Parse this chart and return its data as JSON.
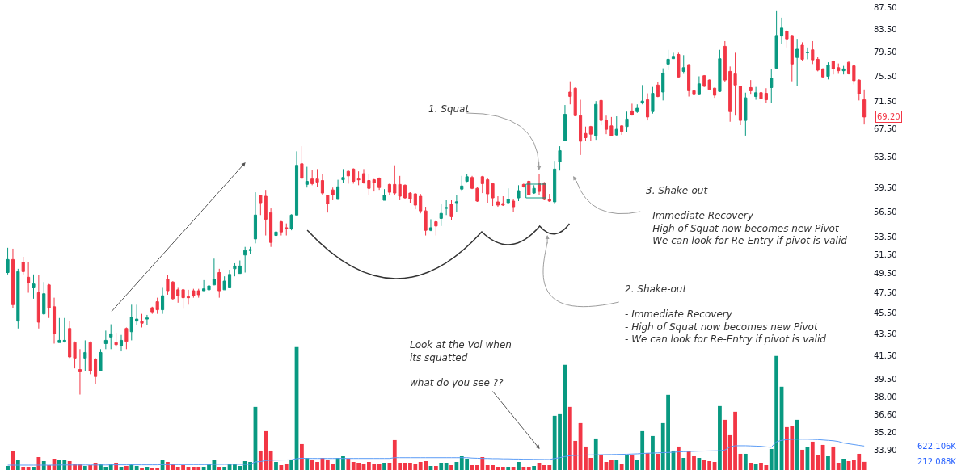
{
  "chart_data": {
    "type": "candlestick",
    "categories": [
      null,
      null,
      null,
      null,
      null,
      null,
      null,
      null,
      null,
      null,
      null,
      null,
      null,
      null,
      null,
      null,
      null,
      null,
      null,
      null,
      null,
      null,
      null,
      null,
      null,
      null,
      null,
      null,
      null,
      null,
      null,
      null,
      null,
      null,
      null,
      null,
      null,
      null,
      null,
      null,
      null,
      null,
      null,
      null,
      null,
      null,
      null,
      null,
      null,
      null,
      null,
      null,
      null,
      null,
      null,
      null,
      null,
      null,
      null,
      null,
      null,
      null,
      null,
      null,
      null,
      null,
      null,
      null,
      null,
      null,
      null,
      null,
      null,
      null,
      null,
      null,
      null,
      null,
      null,
      null,
      null,
      null,
      null,
      null,
      null,
      null,
      null,
      null,
      null,
      null,
      null,
      null,
      null,
      null,
      null,
      null,
      null,
      null,
      null,
      null,
      null,
      null,
      null,
      null,
      null,
      null,
      null,
      null,
      null,
      null,
      null,
      null,
      null,
      null,
      null,
      null,
      null,
      null,
      null,
      null,
      null,
      null,
      null,
      null,
      null,
      null,
      null,
      null,
      null,
      null,
      null,
      null,
      null,
      null,
      null,
      null,
      null,
      null,
      null,
      null,
      null,
      null,
      null,
      null,
      null,
      null,
      null,
      null,
      null,
      null,
      null,
      null,
      null,
      null,
      null,
      null,
      null,
      null,
      null,
      null,
      null,
      null,
      null,
      null,
      null,
      null,
      null
    ],
    "ohlc": [
      [
        49.6,
        52.3,
        49.4,
        51.0
      ],
      [
        51.0,
        52.2,
        46.0,
        46.3
      ],
      [
        44.7,
        50.0,
        44.0,
        49.7
      ],
      [
        50.7,
        51.3,
        49.4,
        49.7
      ],
      [
        49.1,
        50.7,
        47.5,
        48.5
      ],
      [
        48.0,
        49.4,
        46.9,
        48.4
      ],
      [
        47.5,
        49.3,
        44.0,
        44.6
      ],
      [
        45.4,
        48.6,
        45.3,
        47.4
      ],
      [
        48.3,
        48.4,
        45.0,
        46.0
      ],
      [
        46.1,
        47.0,
        42.6,
        43.5
      ],
      [
        42.7,
        45.0,
        42.7,
        42.9
      ],
      [
        42.8,
        45.0,
        42.7,
        42.9
      ],
      [
        44.0,
        44.7,
        41.3,
        41.4
      ],
      [
        42.7,
        42.8,
        40.4,
        41.3
      ],
      [
        40.3,
        42.1,
        38.2,
        40.1
      ],
      [
        41.3,
        42.9,
        40.2,
        41.8
      ],
      [
        42.7,
        42.8,
        39.9,
        40.2
      ],
      [
        41.2,
        41.3,
        39.1,
        39.7
      ],
      [
        40.2,
        42.1,
        40.2,
        41.8
      ],
      [
        42.6,
        43.8,
        42.1,
        42.9
      ],
      [
        43.2,
        44.4,
        42.1,
        43.5
      ],
      [
        42.7,
        43.6,
        42.3,
        42.5
      ],
      [
        42.4,
        43.4,
        41.9,
        42.9
      ],
      [
        44.0,
        44.1,
        42.1,
        42.8
      ],
      [
        43.7,
        46.3,
        42.9,
        45.1
      ],
      [
        44.7,
        46.3,
        44.3,
        44.9
      ],
      [
        44.7,
        45.4,
        44.1,
        44.5
      ],
      [
        44.9,
        45.3,
        44.3,
        45.0
      ],
      [
        46.0,
        46.1,
        45.4,
        45.6
      ],
      [
        46.6,
        47.0,
        45.4,
        45.8
      ],
      [
        45.8,
        48.0,
        45.4,
        47.2
      ],
      [
        48.9,
        49.3,
        47.3,
        47.7
      ],
      [
        48.6,
        48.7,
        46.8,
        46.9
      ],
      [
        47.8,
        48.0,
        46.5,
        47.2
      ],
      [
        47.8,
        47.9,
        45.9,
        47.0
      ],
      [
        47.1,
        47.8,
        46.3,
        47.0
      ],
      [
        47.7,
        47.9,
        47.0,
        47.2
      ],
      [
        47.7,
        47.9,
        47.0,
        47.3
      ],
      [
        47.7,
        48.8,
        47.7,
        47.9
      ],
      [
        47.8,
        48.9,
        46.9,
        48.2
      ],
      [
        48.3,
        51.1,
        48.3,
        48.9
      ],
      [
        49.6,
        50.0,
        47.0,
        47.7
      ],
      [
        47.8,
        49.2,
        47.8,
        48.7
      ],
      [
        48.0,
        49.9,
        48.0,
        49.4
      ],
      [
        50.0,
        50.6,
        49.2,
        50.3
      ],
      [
        49.5,
        50.9,
        49.5,
        50.3
      ],
      [
        51.5,
        52.4,
        49.6,
        52.0
      ],
      [
        52.0,
        52.4,
        51.6,
        52.1
      ],
      [
        53.3,
        58.9,
        52.8,
        56.1
      ],
      [
        58.5,
        58.6,
        56.1,
        57.6
      ],
      [
        58.4,
        59.2,
        53.7,
        55.6
      ],
      [
        56.4,
        56.9,
        52.4,
        52.9
      ],
      [
        53.7,
        55.3,
        52.9,
        54.1
      ],
      [
        55.3,
        55.4,
        53.7,
        54.1
      ],
      [
        54.6,
        55.1,
        53.7,
        54.5
      ],
      [
        54.5,
        56.2,
        54.3,
        56.1
      ],
      [
        56.1,
        64.3,
        56.1,
        62.4
      ],
      [
        62.6,
        65.0,
        60.6,
        60.7
      ],
      [
        59.9,
        62.2,
        59.5,
        60.3
      ],
      [
        60.6,
        61.8,
        59.8,
        60.0
      ],
      [
        60.6,
        61.9,
        59.6,
        60.2
      ],
      [
        60.4,
        61.2,
        58.6,
        58.8
      ],
      [
        58.5,
        58.6,
        56.4,
        57.5
      ],
      [
        59.2,
        59.5,
        57.9,
        58.6
      ],
      [
        58.0,
        60.5,
        58.0,
        59.6
      ],
      [
        60.5,
        61.9,
        60.1,
        60.8
      ],
      [
        61.6,
        61.8,
        60.0,
        61.0
      ],
      [
        61.9,
        62.0,
        60.0,
        60.3
      ],
      [
        60.6,
        61.6,
        59.8,
        60.5
      ],
      [
        61.3,
        61.9,
        60.0,
        60.1
      ],
      [
        60.4,
        61.2,
        58.6,
        59.4
      ],
      [
        60.5,
        60.6,
        59.0,
        60.1
      ],
      [
        60.7,
        60.8,
        59.2,
        59.5
      ],
      [
        57.9,
        59.3,
        57.9,
        58.5
      ],
      [
        59.9,
        60.0,
        58.6,
        58.9
      ],
      [
        59.9,
        62.4,
        58.5,
        58.8
      ],
      [
        59.9,
        61.0,
        57.9,
        58.4
      ],
      [
        59.8,
        59.9,
        58.1,
        58.2
      ],
      [
        58.8,
        58.9,
        57.6,
        58.1
      ],
      [
        58.7,
        58.8,
        56.8,
        57.3
      ],
      [
        58.4,
        58.7,
        56.3,
        56.6
      ],
      [
        56.6,
        57.1,
        53.7,
        54.3
      ],
      [
        54.3,
        55.6,
        54.2,
        54.6
      ],
      [
        55.3,
        55.5,
        53.7,
        54.8
      ],
      [
        55.7,
        57.4,
        54.8,
        56.3
      ],
      [
        56.9,
        57.9,
        56.1,
        57.0
      ],
      [
        57.4,
        57.9,
        55.5,
        55.9
      ],
      [
        57.6,
        58.6,
        56.5,
        57.7
      ],
      [
        59.3,
        61.0,
        59.0,
        59.7
      ],
      [
        60.3,
        61.2,
        60.2,
        60.9
      ],
      [
        60.8,
        61.0,
        59.3,
        59.4
      ],
      [
        59.4,
        59.6,
        57.7,
        57.8
      ],
      [
        60.9,
        61.0,
        58.8,
        60.0
      ],
      [
        60.5,
        60.7,
        57.6,
        58.7
      ],
      [
        60.0,
        60.1,
        57.2,
        58.2
      ],
      [
        57.7,
        58.4,
        57.1,
        57.3
      ],
      [
        57.5,
        58.4,
        57.2,
        57.3
      ],
      [
        57.6,
        59.4,
        57.5,
        58.0
      ],
      [
        57.8,
        58.0,
        56.5,
        57.1
      ],
      [
        58.2,
        59.8,
        57.8,
        59.1
      ],
      [
        59.9,
        60.0,
        59.5,
        59.6
      ],
      [
        60.3,
        60.4,
        58.5,
        58.6
      ],
      [
        58.8,
        59.8,
        58.7,
        59.4
      ],
      [
        60.0,
        61.2,
        58.6,
        59.0
      ],
      [
        60.1,
        60.2,
        57.9,
        58.0
      ],
      [
        58.0,
        58.7,
        57.7,
        57.8
      ],
      [
        57.7,
        63.0,
        57.4,
        61.9
      ],
      [
        62.9,
        65.0,
        61.7,
        64.4
      ],
      [
        65.8,
        71.0,
        65.8,
        69.6
      ],
      [
        73.0,
        74.7,
        71.1,
        72.3
      ],
      [
        73.6,
        73.7,
        69.3,
        69.4
      ],
      [
        69.4,
        71.8,
        63.8,
        65.7
      ],
      [
        66.8,
        67.8,
        65.7,
        66.2
      ],
      [
        67.8,
        67.9,
        65.7,
        66.7
      ],
      [
        66.5,
        71.6,
        65.9,
        71.1
      ],
      [
        71.7,
        71.8,
        68.0,
        68.7
      ],
      [
        68.7,
        69.4,
        66.7,
        67.4
      ],
      [
        67.9,
        69.2,
        66.4,
        66.5
      ],
      [
        66.6,
        69.3,
        66.5,
        67.4
      ],
      [
        67.9,
        68.0,
        66.6,
        67.1
      ],
      [
        67.8,
        70.0,
        67.0,
        68.9
      ],
      [
        70.1,
        71.2,
        69.4,
        69.5
      ],
      [
        70.0,
        71.1,
        69.8,
        70.5
      ],
      [
        71.3,
        74.1,
        71.1,
        71.6
      ],
      [
        71.8,
        72.8,
        68.7,
        69.2
      ],
      [
        70.0,
        73.8,
        69.7,
        72.8
      ],
      [
        74.1,
        74.6,
        72.2,
        72.3
      ],
      [
        73.0,
        76.8,
        71.7,
        76.0
      ],
      [
        77.5,
        79.9,
        76.5,
        78.3
      ],
      [
        78.4,
        79.4,
        78.4,
        78.8
      ],
      [
        79.1,
        79.4,
        75.3,
        75.4
      ],
      [
        76.3,
        79.0,
        75.9,
        76.9
      ],
      [
        77.4,
        77.5,
        72.3,
        73.2
      ],
      [
        73.2,
        74.1,
        72.3,
        72.6
      ],
      [
        72.6,
        75.5,
        72.5,
        74.3
      ],
      [
        75.6,
        75.7,
        73.8,
        73.9
      ],
      [
        74.9,
        75.0,
        73.3,
        73.4
      ],
      [
        73.6,
        73.7,
        72.1,
        72.5
      ],
      [
        73.1,
        79.9,
        73.0,
        78.4
      ],
      [
        80.5,
        81.4,
        74.6,
        74.9
      ],
      [
        76.3,
        77.1,
        68.5,
        70.0
      ],
      [
        75.9,
        79.4,
        69.4,
        74.1
      ],
      [
        73.9,
        74.0,
        68.0,
        68.7
      ],
      [
        68.7,
        72.9,
        66.5,
        72.1
      ],
      [
        73.7,
        74.9,
        72.6,
        73.2
      ],
      [
        72.3,
        73.8,
        71.8,
        72.9
      ],
      [
        72.9,
        73.0,
        70.9,
        72.0
      ],
      [
        72.8,
        73.6,
        71.3,
        71.8
      ],
      [
        73.7,
        76.7,
        71.3,
        75.2
      ],
      [
        76.8,
        86.8,
        76.7,
        82.4
      ],
      [
        82.3,
        85.6,
        80.9,
        83.7
      ],
      [
        83.1,
        83.4,
        80.3,
        81.8
      ],
      [
        82.4,
        82.5,
        74.7,
        77.5
      ],
      [
        78.6,
        81.8,
        74.0,
        80.0
      ],
      [
        80.7,
        81.2,
        78.1,
        78.3
      ],
      [
        79.4,
        80.3,
        78.3,
        79.5
      ],
      [
        79.9,
        81.4,
        77.5,
        78.2
      ],
      [
        78.3,
        78.7,
        76.3,
        76.5
      ],
      [
        76.7,
        76.8,
        75.2,
        75.4
      ],
      [
        75.5,
        77.8,
        75.0,
        77.3
      ],
      [
        78.0,
        78.1,
        75.8,
        76.7
      ],
      [
        76.9,
        77.6,
        75.9,
        76.4
      ],
      [
        76.4,
        77.2,
        75.8,
        76.7
      ],
      [
        77.8,
        77.9,
        75.8,
        75.9
      ],
      [
        77.2,
        77.3,
        74.2,
        74.8
      ],
      [
        74.9,
        75.0,
        71.7,
        72.7
      ],
      [
        71.8,
        73.4,
        68.1,
        69.2
      ]
    ],
    "colors": [
      "#089981",
      "#f23645",
      "#089981",
      "#f23645",
      "#f23645",
      "#089981",
      "#f23645",
      "#089981",
      "#f23645",
      "#f23645",
      "#089981",
      "#089981",
      "#f23645",
      "#f23645",
      "#f23645",
      "#089981",
      "#f23645",
      "#f23645",
      "#089981",
      "#089981",
      "#089981",
      "#f23645",
      "#089981",
      "#f23645",
      "#089981",
      "#089981",
      "#f23645",
      "#089981",
      "#f23645",
      "#f23645",
      "#089981",
      "#f23645",
      "#f23645",
      "#f23645",
      "#f23645",
      "#f23645",
      "#f23645",
      "#f23645",
      "#089981",
      "#089981",
      "#089981",
      "#f23645",
      "#089981",
      "#089981",
      "#089981",
      "#089981",
      "#089981",
      "#089981",
      "#089981",
      "#f23645",
      "#f23645",
      "#f23645",
      "#089981",
      "#f23645",
      "#f23645",
      "#089981",
      "#089981",
      "#f23645",
      "#089981",
      "#f23645",
      "#f23645",
      "#f23645",
      "#f23645",
      "#f23645",
      "#089981",
      "#089981",
      "#f23645",
      "#f23645",
      "#f23645",
      "#f23645",
      "#f23645",
      "#f23645",
      "#f23645",
      "#089981",
      "#f23645",
      "#f23645",
      "#f23645",
      "#f23645",
      "#f23645",
      "#f23645",
      "#f23645",
      "#f23645",
      "#089981",
      "#f23645",
      "#089981",
      "#089981",
      "#f23645",
      "#089981",
      "#089981",
      "#089981",
      "#f23645",
      "#f23645",
      "#f23645",
      "#f23645",
      "#f23645",
      "#f23645",
      "#f23645",
      "#089981",
      "#f23645",
      "#089981",
      "#f23645",
      "#f23645",
      "#089981",
      "#f23645",
      "#f23645",
      "#f23645",
      "#089981",
      "#089981",
      "#089981",
      "#f23645",
      "#f23645",
      "#f23645",
      "#f23645",
      "#f23645",
      "#089981",
      "#f23645",
      "#f23645",
      "#f23645",
      "#089981",
      "#f23645",
      "#089981",
      "#f23645",
      "#089981",
      "#089981",
      "#f23645",
      "#089981",
      "#f23645",
      "#089981",
      "#089981",
      "#089981",
      "#f23645",
      "#089981",
      "#f23645",
      "#f23645",
      "#089981",
      "#f23645",
      "#f23645",
      "#f23645",
      "#089981",
      "#f23645",
      "#f23645",
      "#f23645",
      "#f23645",
      "#089981",
      "#f23645",
      "#089981",
      "#f23645",
      "#f23645",
      "#089981",
      "#089981",
      "#089981",
      "#f23645",
      "#f23645",
      "#089981",
      "#f23645",
      "#089981",
      "#f23645",
      "#f23645",
      "#f23645",
      "#089981",
      "#f23645",
      "#f23645",
      "#089981",
      "#f23645",
      "#f23645",
      "#f23645",
      "#f23645"
    ],
    "series": [
      {
        "type": "bar",
        "axis": "y2",
        "colors": [
          "#089981",
          "#f23645",
          "#089981",
          "#f23645",
          "#f23645",
          "#089981",
          "#f23645",
          "#089981",
          "#f23645",
          "#f23645",
          "#089981",
          "#089981",
          "#f23645",
          "#f23645",
          "#f23645",
          "#089981",
          "#f23645",
          "#f23645",
          "#089981",
          "#089981",
          "#089981",
          "#f23645",
          "#089981",
          "#f23645",
          "#089981",
          "#089981",
          "#f23645",
          "#089981",
          "#f23645",
          "#f23645",
          "#089981",
          "#f23645",
          "#f23645",
          "#f23645",
          "#f23645",
          "#f23645",
          "#f23645",
          "#f23645",
          "#089981",
          "#089981",
          "#089981",
          "#f23645",
          "#089981",
          "#089981",
          "#089981",
          "#089981",
          "#089981",
          "#089981",
          "#089981",
          "#f23645",
          "#f23645",
          "#f23645",
          "#089981",
          "#f23645",
          "#f23645",
          "#089981",
          "#089981",
          "#f23645",
          "#089981",
          "#f23645",
          "#f23645",
          "#f23645",
          "#f23645",
          "#f23645",
          "#089981",
          "#089981",
          "#f23645",
          "#f23645",
          "#f23645",
          "#f23645",
          "#f23645",
          "#f23645",
          "#f23645",
          "#089981",
          "#f23645",
          "#f23645",
          "#f23645",
          "#f23645",
          "#f23645",
          "#f23645",
          "#f23645",
          "#f23645",
          "#089981",
          "#f23645",
          "#089981",
          "#089981",
          "#f23645",
          "#089981",
          "#089981",
          "#089981",
          "#f23645",
          "#f23645",
          "#f23645",
          "#f23645",
          "#f23645",
          "#f23645",
          "#f23645",
          "#089981",
          "#f23645",
          "#089981",
          "#f23645",
          "#f23645",
          "#089981",
          "#f23645",
          "#f23645",
          "#f23645",
          "#089981",
          "#089981",
          "#089981",
          "#f23645",
          "#f23645",
          "#f23645",
          "#f23645",
          "#f23645",
          "#089981",
          "#f23645",
          "#f23645",
          "#f23645",
          "#089981",
          "#f23645",
          "#089981",
          "#f23645",
          "#089981",
          "#089981",
          "#f23645",
          "#089981",
          "#f23645",
          "#089981",
          "#089981",
          "#089981",
          "#f23645",
          "#089981",
          "#f23645",
          "#f23645",
          "#089981",
          "#f23645",
          "#f23645",
          "#f23645",
          "#089981",
          "#f23645",
          "#f23645",
          "#f23645",
          "#f23645",
          "#089981",
          "#f23645",
          "#089981",
          "#f23645",
          "#f23645",
          "#089981",
          "#089981",
          "#089981",
          "#f23645",
          "#f23645",
          "#089981",
          "#f23645",
          "#089981",
          "#f23645",
          "#f23645",
          "#f23645",
          "#089981",
          "#f23645",
          "#f23645",
          "#089981",
          "#f23645",
          "#f23645",
          "#f23645",
          "#f23645"
        ],
        "values": [
          105,
          483,
          273,
          84,
          84,
          84,
          336,
          231,
          126,
          294,
          252,
          252,
          231,
          147,
          168,
          105,
          126,
          189,
          147,
          84,
          147,
          189,
          84,
          105,
          147,
          105,
          42,
          84,
          63,
          63,
          273,
          210,
          147,
          84,
          126,
          84,
          84,
          84,
          84,
          168,
          252,
          84,
          84,
          147,
          147,
          105,
          231,
          210,
          1638,
          504,
          1008,
          504,
          210,
          126,
          168,
          273,
          3192,
          672,
          315,
          252,
          210,
          315,
          273,
          147,
          315,
          357,
          294,
          210,
          189,
          168,
          210,
          147,
          147,
          189,
          189,
          777,
          189,
          189,
          189,
          147,
          210,
          231,
          105,
          105,
          189,
          189,
          126,
          210,
          357,
          294,
          126,
          126,
          336,
          126,
          126,
          84,
          84,
          84,
          84,
          210,
          84,
          84,
          105,
          189,
          126,
          126,
          1407,
          1449,
          2730,
          1638,
          756,
          1218,
          609,
          315,
          819,
          399,
          210,
          252,
          252,
          147,
          399,
          378,
          273,
          1008,
          441,
          882,
          420,
          1218,
          1953,
          504,
          609,
          315,
          483,
          357,
          315,
          273,
          231,
          210,
          1659,
          1302,
          903,
          1512,
          420,
          420,
          189,
          147,
          189,
          126,
          546,
          2961,
          2163,
          1113,
          1134,
          1302,
          525,
          588,
          735,
          399,
          651,
          357,
          609,
          189,
          294,
          231,
          252,
          420,
          212.088
        ]
      },
      {
        "type": "line",
        "axis": "y2",
        "color": "#5b9cf6",
        "values": [
          126,
          126,
          126,
          126,
          126,
          126,
          126,
          126,
          126,
          126,
          130,
          130,
          130,
          130,
          130,
          130,
          130,
          130,
          130,
          130,
          134,
          134,
          134,
          134,
          134,
          134,
          134,
          134,
          134,
          134,
          140,
          140,
          140,
          140,
          140,
          140,
          140,
          140,
          140,
          140,
          147,
          147,
          147,
          147,
          147,
          147,
          147,
          147,
          210,
          220,
          245,
          255,
          258,
          260,
          262,
          265,
          294,
          305,
          300,
          300,
          300,
          300,
          300,
          300,
          300,
          300,
          300,
          300,
          300,
          300,
          300,
          300,
          300,
          300,
          300,
          320,
          320,
          320,
          320,
          320,
          320,
          320,
          320,
          320,
          320,
          320,
          320,
          320,
          320,
          320,
          310,
          305,
          300,
          300,
          295,
          295,
          290,
          290,
          285,
          285,
          280,
          280,
          278,
          276,
          275,
          273,
          300,
          320,
          350,
          370,
          380,
          385,
          390,
          392,
          395,
          398,
          400,
          402,
          405,
          408,
          410,
          415,
          420,
          430,
          435,
          440,
          445,
          450,
          455,
          460,
          470,
          475,
          480,
          485,
          490,
          492,
          495,
          498,
          500,
          520,
          600,
          630,
          630,
          630,
          625,
          620,
          615,
          600,
          590,
          735,
          770,
          790,
          798,
          800,
          800,
          800,
          795,
          790,
          780,
          770,
          760,
          740,
          700,
          680,
          660,
          640,
          622.106
        ]
      }
    ],
    "log": true,
    "ylim": [
      32.5,
      88.9
    ],
    "yticks": [
      {
        "value": 87.5,
        "label": "87.50"
      },
      {
        "value": 83.5,
        "label": "83.50"
      },
      {
        "value": 79.5,
        "label": "79.50"
      },
      {
        "value": 75.5,
        "label": "75.50"
      },
      {
        "value": 71.5,
        "label": "71.50"
      },
      {
        "value": 67.5,
        "label": "67.50"
      },
      {
        "value": 63.5,
        "label": "63.50"
      },
      {
        "value": 59.5,
        "label": "59.50"
      },
      {
        "value": 56.5,
        "label": "56.50"
      },
      {
        "value": 53.5,
        "label": "53.50"
      },
      {
        "value": 51.5,
        "label": "51.50"
      },
      {
        "value": 49.5,
        "label": "49.50"
      },
      {
        "value": 47.5,
        "label": "47.50"
      },
      {
        "value": 45.5,
        "label": "45.50"
      },
      {
        "value": 43.5,
        "label": "43.50"
      },
      {
        "value": 41.5,
        "label": "41.50"
      },
      {
        "value": 39.5,
        "label": "39.50"
      },
      {
        "value": 38,
        "label": "38.00"
      },
      {
        "value": 36.6,
        "label": "36.60"
      },
      {
        "value": 35.2,
        "label": "35.20"
      },
      {
        "value": 33.9,
        "label": "33.90"
      }
    ],
    "y2lim": [
      0,
      12200
    ],
    "y2ticks": [
      {
        "value": 212.088,
        "label": "212.088K"
      },
      {
        "value": 622.106,
        "label": "622.106K"
      }
    ],
    "annotations": [
      "1. Squat",
      "3. Shake-out\n\n- Immediate Recovery\n- High of Squat now becomes new Pivot\n- We can look for Re-Entry if pivot is valid",
      "2. Shake-out\n\n- Immediate Recovery\n- High of Squat now becomes new Pivot\n- We can look for Re-Entry if pivot is valid",
      "Look at the Vol when\nits squatted\n\nwhat do you see ??",
      "69.20"
    ]
  }
}
